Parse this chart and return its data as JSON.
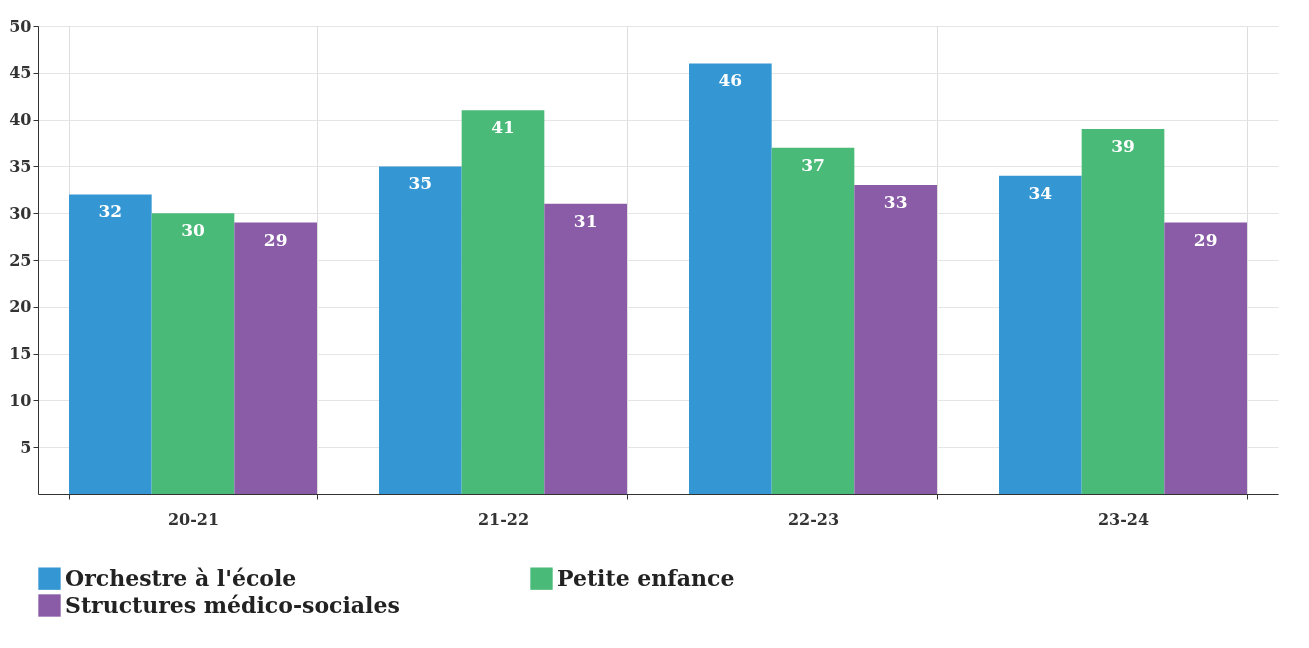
{
  "chart_data": {
    "type": "bar",
    "categories": [
      "20-21",
      "21-22",
      "22-23",
      "23-24"
    ],
    "series": [
      {
        "name": "Orchestre à l'école",
        "color": "#3497d3",
        "values": [
          32,
          35,
          46,
          34
        ]
      },
      {
        "name": "Petite enfance",
        "color": "#4aba78",
        "values": [
          30,
          41,
          37,
          39
        ]
      },
      {
        "name": "Structures médico-sociales",
        "color": "#8a5ca8",
        "values": [
          29,
          31,
          33,
          29
        ]
      }
    ],
    "ylim": [
      0,
      50
    ],
    "yticks": [
      5,
      10,
      15,
      20,
      25,
      30,
      35,
      40,
      45,
      50
    ],
    "grid": true,
    "legend": "bottom",
    "data_labels": true
  }
}
